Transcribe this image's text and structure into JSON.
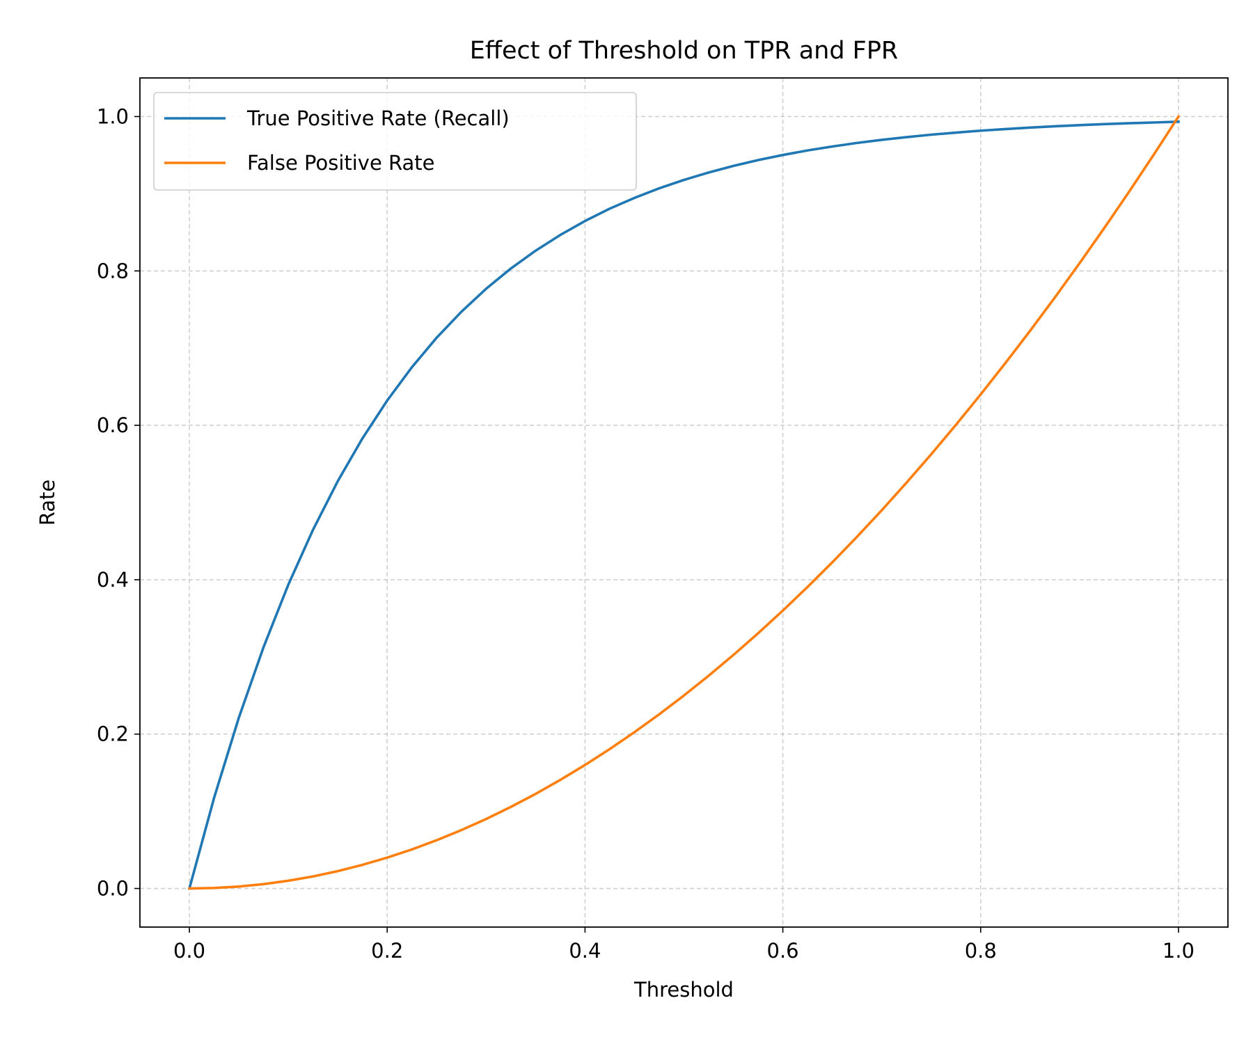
{
  "chart_data": {
    "type": "line",
    "title": "Effect of Threshold on TPR and FPR",
    "xlabel": "Threshold",
    "ylabel": "Rate",
    "xlim": [
      -0.05,
      1.05
    ],
    "ylim": [
      -0.05,
      1.05
    ],
    "xticks": [
      0.0,
      0.2,
      0.4,
      0.6,
      0.8,
      1.0
    ],
    "xtick_labels": [
      "0.0",
      "0.2",
      "0.4",
      "0.6",
      "0.8",
      "1.0"
    ],
    "yticks": [
      0.0,
      0.2,
      0.4,
      0.6,
      0.8,
      1.0
    ],
    "ytick_labels": [
      "0.0",
      "0.2",
      "0.4",
      "0.6",
      "0.8",
      "1.0"
    ],
    "grid": true,
    "legend_position": "top-left",
    "x": [
      0.0,
      0.025,
      0.05,
      0.075,
      0.1,
      0.125,
      0.15,
      0.175,
      0.2,
      0.225,
      0.25,
      0.275,
      0.3,
      0.325,
      0.35,
      0.375,
      0.4,
      0.425,
      0.45,
      0.475,
      0.5,
      0.525,
      0.55,
      0.575,
      0.6,
      0.625,
      0.65,
      0.675,
      0.7,
      0.725,
      0.75,
      0.775,
      0.8,
      0.825,
      0.85,
      0.875,
      0.9,
      0.925,
      0.95,
      0.975,
      1.0
    ],
    "series": [
      {
        "name": "True Positive Rate (Recall)",
        "color": "#1f77b4",
        "values": [
          0.0,
          0.1175,
          0.2212,
          0.3127,
          0.3935,
          0.4647,
          0.5276,
          0.5831,
          0.6321,
          0.6753,
          0.7135,
          0.7471,
          0.7769,
          0.8031,
          0.8262,
          0.8466,
          0.8647,
          0.8807,
          0.8946,
          0.907,
          0.9179,
          0.9275,
          0.9361,
          0.9436,
          0.9502,
          0.9561,
          0.9612,
          0.9658,
          0.9698,
          0.9733,
          0.9765,
          0.9792,
          0.9817,
          0.9838,
          0.9857,
          0.9874,
          0.9889,
          0.9902,
          0.9913,
          0.9923,
          0.9933
        ]
      },
      {
        "name": "False Positive Rate",
        "color": "#ff7f0e",
        "values": [
          0.0,
          0.000625,
          0.0025,
          0.005625,
          0.01,
          0.015625,
          0.0225,
          0.030625,
          0.04,
          0.050625,
          0.0625,
          0.075625,
          0.09,
          0.105625,
          0.1225,
          0.140625,
          0.16,
          0.180625,
          0.2025,
          0.225625,
          0.25,
          0.275625,
          0.3025,
          0.330625,
          0.36,
          0.390625,
          0.4225,
          0.455625,
          0.49,
          0.525625,
          0.5625,
          0.600625,
          0.64,
          0.680625,
          0.7225,
          0.765625,
          0.81,
          0.855625,
          0.9025,
          0.950625,
          1.0
        ]
      }
    ]
  }
}
